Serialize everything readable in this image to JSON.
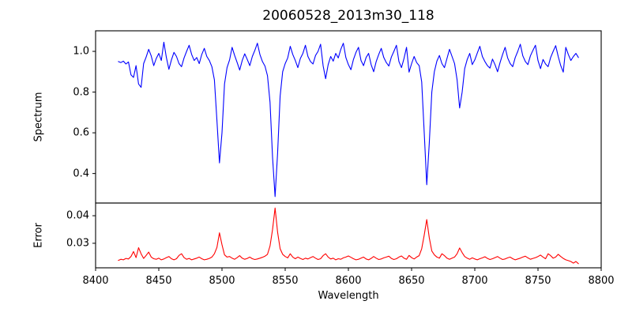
{
  "chart_data": {
    "type": "line",
    "title": "20060528_2013m30_118",
    "xlabel": "Wavelength",
    "grid": false,
    "legend": "none",
    "xlim": [
      8400,
      8800
    ],
    "x_ticks": [
      8400,
      8450,
      8500,
      8550,
      8600,
      8650,
      8700,
      8750,
      8800
    ],
    "x_tick_labels": [
      "8400",
      "8450",
      "8500",
      "8550",
      "8600",
      "8650",
      "8700",
      "8750",
      "8800"
    ],
    "panels": [
      {
        "ylabel": "Spectrum",
        "ylim": [
          0.255,
          1.101
        ],
        "y_ticks": [
          0.4,
          0.6,
          0.8,
          1.0
        ],
        "y_tick_labels": [
          "0.4",
          "0.6",
          "0.8",
          "1.0"
        ],
        "series": "spectrum",
        "color": "#0000ff"
      },
      {
        "ylabel": "Error",
        "ylim": [
          0.0211,
          0.0446
        ],
        "y_ticks": [
          0.03,
          0.04
        ],
        "y_tick_labels": [
          "0.03",
          "0.04"
        ],
        "series": "error",
        "color": "#ff0000"
      }
    ],
    "x": [
      8418,
      8420,
      8422,
      8424,
      8426,
      8428,
      8430,
      8432,
      8434,
      8436,
      8438,
      8440,
      8442,
      8444,
      8446,
      8448,
      8450,
      8452,
      8454,
      8456,
      8458,
      8460,
      8462,
      8464,
      8466,
      8468,
      8470,
      8472,
      8474,
      8476,
      8478,
      8480,
      8482,
      8484,
      8486,
      8488,
      8490,
      8492,
      8494,
      8496,
      8498,
      8500,
      8502,
      8504,
      8506,
      8508,
      8510,
      8512,
      8514,
      8516,
      8518,
      8520,
      8522,
      8524,
      8526,
      8528,
      8530,
      8532,
      8534,
      8536,
      8538,
      8540,
      8542,
      8544,
      8546,
      8548,
      8550,
      8552,
      8554,
      8556,
      8558,
      8560,
      8562,
      8564,
      8566,
      8568,
      8570,
      8572,
      8574,
      8576,
      8578,
      8580,
      8582,
      8584,
      8586,
      8588,
      8590,
      8592,
      8594,
      8596,
      8598,
      8600,
      8602,
      8604,
      8606,
      8608,
      8610,
      8612,
      8614,
      8616,
      8618,
      8620,
      8622,
      8624,
      8626,
      8628,
      8630,
      8632,
      8634,
      8636,
      8638,
      8640,
      8642,
      8644,
      8646,
      8648,
      8650,
      8652,
      8654,
      8656,
      8658,
      8660,
      8662,
      8664,
      8666,
      8668,
      8670,
      8672,
      8674,
      8676,
      8678,
      8680,
      8682,
      8684,
      8686,
      8688,
      8690,
      8692,
      8694,
      8696,
      8698,
      8700,
      8702,
      8704,
      8706,
      8708,
      8710,
      8712,
      8714,
      8716,
      8718,
      8720,
      8722,
      8724,
      8726,
      8728,
      8730,
      8732,
      8734,
      8736,
      8738,
      8740,
      8742,
      8744,
      8746,
      8748,
      8750,
      8752,
      8754,
      8756,
      8758,
      8760,
      8762,
      8764,
      8766,
      8768,
      8770,
      8772,
      8774,
      8776,
      8778,
      8780,
      8782
    ],
    "series": [
      {
        "name": "spectrum",
        "color": "#0000ff",
        "values": [
          0.95,
          0.945,
          0.952,
          0.938,
          0.948,
          0.885,
          0.872,
          0.93,
          0.84,
          0.823,
          0.94,
          0.972,
          1.01,
          0.978,
          0.93,
          0.965,
          0.99,
          0.955,
          1.045,
          0.97,
          0.912,
          0.958,
          0.995,
          0.975,
          0.94,
          0.925,
          0.968,
          1.0,
          1.03,
          0.985,
          0.955,
          0.97,
          0.94,
          0.985,
          1.015,
          0.975,
          0.955,
          0.925,
          0.86,
          0.66,
          0.452,
          0.6,
          0.84,
          0.92,
          0.958,
          1.02,
          0.98,
          0.945,
          0.908,
          0.955,
          0.988,
          0.96,
          0.93,
          0.975,
          1.005,
          1.04,
          0.985,
          0.95,
          0.928,
          0.88,
          0.75,
          0.48,
          0.287,
          0.5,
          0.78,
          0.9,
          0.94,
          0.968,
          1.025,
          0.985,
          0.955,
          0.92,
          0.965,
          0.99,
          1.03,
          0.975,
          0.95,
          0.938,
          0.98,
          1.0,
          1.035,
          0.93,
          0.866,
          0.935,
          0.975,
          0.952,
          0.99,
          0.968,
          1.01,
          1.04,
          0.97,
          0.935,
          0.91,
          0.96,
          0.995,
          1.02,
          0.955,
          0.93,
          0.97,
          0.99,
          0.935,
          0.9,
          0.95,
          0.985,
          1.015,
          0.97,
          0.945,
          0.928,
          0.972,
          1.0,
          1.03,
          0.95,
          0.92,
          0.965,
          1.02,
          0.898,
          0.94,
          0.975,
          0.945,
          0.93,
          0.85,
          0.6,
          0.345,
          0.55,
          0.8,
          0.9,
          0.952,
          0.98,
          0.94,
          0.92,
          0.965,
          1.01,
          0.975,
          0.94,
          0.86,
          0.722,
          0.8,
          0.915,
          0.96,
          0.99,
          0.935,
          0.958,
          0.992,
          1.025,
          0.975,
          0.95,
          0.93,
          0.918,
          0.962,
          0.935,
          0.9,
          0.945,
          0.985,
          1.02,
          0.968,
          0.94,
          0.925,
          0.97,
          1.0,
          1.035,
          0.978,
          0.95,
          0.935,
          0.978,
          1.005,
          1.03,
          0.955,
          0.915,
          0.96,
          0.938,
          0.925,
          0.97,
          1.0,
          1.028,
          0.975,
          0.93,
          0.898,
          1.02,
          0.985,
          0.955,
          0.975,
          0.99,
          0.97
        ]
      },
      {
        "name": "error",
        "color": "#ff0000",
        "values": [
          0.0238,
          0.0242,
          0.024,
          0.0245,
          0.0243,
          0.0252,
          0.027,
          0.0248,
          0.0284,
          0.0262,
          0.0245,
          0.0256,
          0.0268,
          0.025,
          0.0244,
          0.0242,
          0.0246,
          0.024,
          0.0243,
          0.0248,
          0.0252,
          0.0244,
          0.024,
          0.0244,
          0.0256,
          0.0262,
          0.0248,
          0.0242,
          0.0245,
          0.024,
          0.0243,
          0.0246,
          0.025,
          0.0244,
          0.024,
          0.0242,
          0.0245,
          0.025,
          0.0262,
          0.0285,
          0.0338,
          0.0295,
          0.0258,
          0.025,
          0.0252,
          0.0246,
          0.0242,
          0.0248,
          0.0255,
          0.0246,
          0.0242,
          0.0245,
          0.025,
          0.0244,
          0.0241,
          0.0243,
          0.0246,
          0.0249,
          0.0253,
          0.026,
          0.029,
          0.035,
          0.0428,
          0.034,
          0.028,
          0.026,
          0.0252,
          0.0247,
          0.0262,
          0.025,
          0.0244,
          0.025,
          0.0245,
          0.0241,
          0.0246,
          0.0243,
          0.0248,
          0.0252,
          0.0246,
          0.0241,
          0.0244,
          0.0255,
          0.0262,
          0.025,
          0.0243,
          0.0246,
          0.024,
          0.0244,
          0.0242,
          0.0247,
          0.025,
          0.0254,
          0.0249,
          0.0244,
          0.024,
          0.0242,
          0.0246,
          0.025,
          0.0243,
          0.024,
          0.0245,
          0.0252,
          0.0246,
          0.0241,
          0.0243,
          0.0247,
          0.025,
          0.0253,
          0.0245,
          0.0241,
          0.0244,
          0.025,
          0.0254,
          0.0246,
          0.0242,
          0.0256,
          0.0248,
          0.0243,
          0.025,
          0.0255,
          0.028,
          0.033,
          0.0386,
          0.032,
          0.0272,
          0.0258,
          0.025,
          0.0246,
          0.0262,
          0.0255,
          0.0246,
          0.0242,
          0.0246,
          0.025,
          0.0262,
          0.0283,
          0.0266,
          0.0252,
          0.0246,
          0.0242,
          0.0247,
          0.0243,
          0.024,
          0.0244,
          0.0247,
          0.0251,
          0.0245,
          0.0241,
          0.0244,
          0.0248,
          0.0252,
          0.0246,
          0.0241,
          0.0243,
          0.0247,
          0.025,
          0.0244,
          0.024,
          0.0243,
          0.0246,
          0.025,
          0.0253,
          0.0247,
          0.0242,
          0.0245,
          0.0248,
          0.0252,
          0.0257,
          0.025,
          0.0244,
          0.0262,
          0.0255,
          0.0246,
          0.025,
          0.026,
          0.0252,
          0.0245,
          0.024,
          0.0237,
          0.0234,
          0.0228,
          0.0234,
          0.0226
        ]
      }
    ]
  }
}
